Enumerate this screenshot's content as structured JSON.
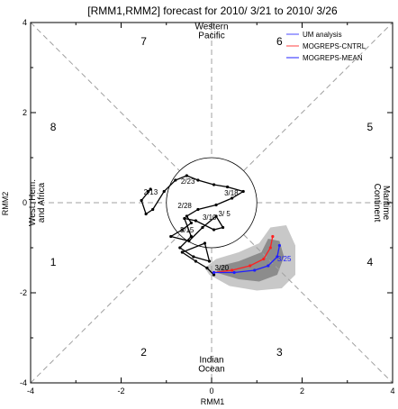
{
  "chart_data": {
    "type": "line",
    "title": "[RMM1,RMM2] forecast for 2010/ 3/21 to 2010/ 3/26",
    "xlabel": "RMM1",
    "ylabel": "RMM2",
    "xlim": [
      -4,
      4
    ],
    "ylim": [
      -4,
      4
    ],
    "x_ticks": [
      "-4",
      "-2",
      "0",
      "2",
      "4"
    ],
    "y_ticks": [
      "-4",
      "-2",
      "0",
      "2",
      "4"
    ],
    "grid": false,
    "legend_position": "top-right",
    "unit_circle_radius": 1,
    "phases": [
      {
        "label": "1",
        "x": -3.5,
        "y": -1.4
      },
      {
        "label": "2",
        "x": -1.5,
        "y": -3.4
      },
      {
        "label": "3",
        "x": 1.5,
        "y": -3.4
      },
      {
        "label": "4",
        "x": 3.5,
        "y": -1.4
      },
      {
        "label": "5",
        "x": 3.5,
        "y": 1.6
      },
      {
        "label": "6",
        "x": 1.5,
        "y": 3.5
      },
      {
        "label": "7",
        "x": -1.5,
        "y": 3.5
      },
      {
        "label": "8",
        "x": -3.5,
        "y": 1.6
      }
    ],
    "regions": [
      {
        "lines": [
          "Western",
          "Pacific"
        ],
        "x": 0,
        "y": 3.85,
        "rotation": 0
      },
      {
        "lines": [
          "Indian",
          "Ocean"
        ],
        "x": 0,
        "y": -3.55,
        "rotation": 0
      },
      {
        "lines": [
          "West. Hem.",
          "and Africa"
        ],
        "x": -3.9,
        "y": 0,
        "rotation": -90
      },
      {
        "lines": [
          "Maritime",
          "Continent"
        ],
        "x": 3.8,
        "y": 0,
        "rotation": 90
      }
    ],
    "legend": [
      {
        "label": "UM analysis",
        "color": "#4a4aff"
      },
      {
        "label": "MOGREPS-CNTRL",
        "color": "#ff4040"
      },
      {
        "label": "MOGREPS-MEAN",
        "color": "#2020ff"
      }
    ],
    "series": [
      {
        "name": "UM analysis",
        "color": "#000000",
        "x": [
          -1.4,
          -1.35,
          -1.55,
          -1.45,
          -1.3,
          -1.05,
          -0.8,
          -0.55,
          -0.3,
          0.05,
          0.35,
          0.7,
          0.45,
          0.1,
          -0.3,
          -0.55,
          -0.45,
          -0.65,
          -0.9,
          -0.5,
          -0.2,
          0.1,
          0.25,
          0.05,
          -0.35,
          -0.6,
          -0.45,
          -0.7,
          -0.4,
          -0.05,
          -0.15,
          -0.65,
          -0.35,
          -0.1,
          0.05
        ],
        "y": [
          0.25,
          0.3,
          0.05,
          -0.25,
          -0.15,
          0.25,
          0.5,
          0.6,
          0.5,
          0.4,
          0.35,
          0.25,
          0.1,
          -0.05,
          -0.15,
          -0.3,
          -0.45,
          -0.6,
          -0.75,
          -0.85,
          -0.55,
          -0.3,
          -0.55,
          -0.6,
          -0.4,
          -0.35,
          -0.75,
          -1.0,
          -1.2,
          -1.3,
          -0.9,
          -1.1,
          -1.3,
          -1.45,
          -1.6
        ],
        "annotations": [
          {
            "label": "2/13",
            "x": -1.5,
            "y": 0.18
          },
          {
            "label": "2/23",
            "x": -0.68,
            "y": 0.42
          },
          {
            "label": "3/18",
            "x": 0.28,
            "y": 0.16
          },
          {
            "label": "2/28",
            "x": -0.75,
            "y": -0.12
          },
          {
            "label": "3/ 5",
            "x": 0.15,
            "y": -0.3
          },
          {
            "label": "3/15",
            "x": -0.7,
            "y": -0.66
          },
          {
            "label": "3/10",
            "x": -0.2,
            "y": -0.38
          }
        ]
      },
      {
        "name": "MOGREPS-CNTRL",
        "color": "#ff2020",
        "x": [
          0.05,
          0.45,
          0.85,
          1.15,
          1.3,
          1.35
        ],
        "y": [
          -1.55,
          -1.5,
          -1.4,
          -1.25,
          -1.0,
          -0.75
        ],
        "annotations": [
          {
            "label": "3/20",
            "x": 0.07,
            "y": -1.5
          }
        ]
      },
      {
        "name": "MOGREPS-MEAN",
        "color": "#2020ff",
        "x": [
          0.05,
          0.5,
          0.95,
          1.25,
          1.45,
          1.5
        ],
        "y": [
          -1.55,
          -1.55,
          -1.5,
          -1.4,
          -1.2,
          -0.95
        ],
        "annotations": [
          {
            "label": "3/25",
            "x": 1.45,
            "y": -1.3
          }
        ]
      }
    ],
    "spread_outer": [
      [
        -0.05,
        -1.6
      ],
      [
        0.4,
        -1.85
      ],
      [
        1.0,
        -1.95
      ],
      [
        1.55,
        -1.9
      ],
      [
        1.85,
        -1.6
      ],
      [
        1.85,
        -0.95
      ],
      [
        1.65,
        -0.5
      ],
      [
        1.3,
        -0.55
      ],
      [
        1.05,
        -0.9
      ],
      [
        0.6,
        -1.1
      ],
      [
        0.1,
        -1.25
      ],
      [
        -0.15,
        -1.45
      ]
    ],
    "spread_inner": [
      [
        0.1,
        -1.55
      ],
      [
        0.6,
        -1.7
      ],
      [
        1.05,
        -1.75
      ],
      [
        1.45,
        -1.6
      ],
      [
        1.6,
        -1.2
      ],
      [
        1.5,
        -0.85
      ],
      [
        1.25,
        -0.8
      ],
      [
        1.1,
        -1.1
      ],
      [
        0.6,
        -1.3
      ],
      [
        0.2,
        -1.4
      ]
    ]
  }
}
